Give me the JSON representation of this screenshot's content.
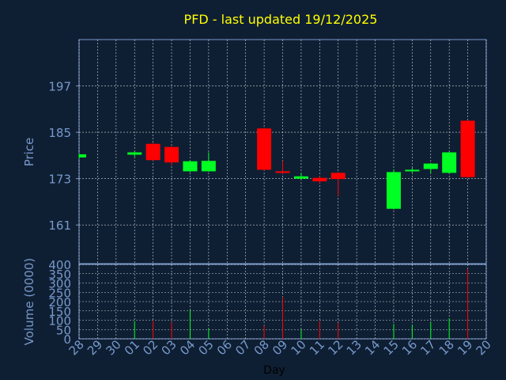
{
  "chart_data": [
    {
      "type": "candlestick",
      "title": "PFD - last updated 19/12/2025",
      "ylabel": "Price",
      "ylim": [
        151,
        209
      ],
      "yticks": [
        161,
        173,
        185,
        197
      ],
      "grid": true,
      "colors": {
        "up": "#00ff22",
        "down": "#ff0000",
        "title": "#ffff00",
        "axis_text": "#7799cc",
        "background": "#0f1f33",
        "grid": "#ffffff"
      },
      "x_days": [
        "28",
        "29",
        "30",
        "01",
        "02",
        "03",
        "04",
        "05",
        "06",
        "07",
        "08",
        "09",
        "10",
        "11",
        "12",
        "13",
        "14",
        "15",
        "16",
        "17",
        "18",
        "19",
        "20"
      ],
      "candles": [
        {
          "day": "28",
          "open": 178.5,
          "close": 179.3,
          "high": 179.5,
          "low": 178.3
        },
        {
          "day": "01",
          "open": 179.2,
          "close": 179.8,
          "high": 180.0,
          "low": 178.7
        },
        {
          "day": "02",
          "open": 182.0,
          "close": 177.8,
          "high": 182.3,
          "low": 177.6
        },
        {
          "day": "03",
          "open": 181.2,
          "close": 177.2,
          "high": 181.4,
          "low": 176.4
        },
        {
          "day": "04",
          "open": 174.9,
          "close": 177.5,
          "high": 177.7,
          "low": 174.7
        },
        {
          "day": "05",
          "open": 174.9,
          "close": 177.6,
          "high": 179.8,
          "low": 174.8
        },
        {
          "day": "08",
          "open": 186.0,
          "close": 175.3,
          "high": 186.2,
          "low": 175.1
        },
        {
          "day": "09",
          "open": 174.9,
          "close": 174.6,
          "high": 177.6,
          "low": 174.2
        },
        {
          "day": "10",
          "open": 173.0,
          "close": 173.6,
          "high": 174.5,
          "low": 172.8
        },
        {
          "day": "11",
          "open": 173.2,
          "close": 172.3,
          "high": 173.6,
          "low": 171.8
        },
        {
          "day": "12",
          "open": 174.5,
          "close": 172.9,
          "high": 174.7,
          "low": 168.5
        },
        {
          "day": "15",
          "open": 165.2,
          "close": 174.7,
          "high": 175.4,
          "low": 165.0
        },
        {
          "day": "16",
          "open": 174.9,
          "close": 175.3,
          "high": 175.8,
          "low": 174.6
        },
        {
          "day": "17",
          "open": 175.5,
          "close": 176.9,
          "high": 177.1,
          "low": 174.4
        },
        {
          "day": "18",
          "open": 174.5,
          "close": 179.8,
          "high": 180.0,
          "low": 174.3
        },
        {
          "day": "19",
          "open": 188.0,
          "close": 173.4,
          "high": 188.2,
          "low": 173.2
        }
      ]
    },
    {
      "type": "bar",
      "ylabel": "Volume (0000)",
      "xlabel": "Day",
      "ylim": [
        0,
        400
      ],
      "yticks": [
        0,
        50,
        100,
        150,
        200,
        250,
        300,
        350,
        400
      ],
      "bars": [
        {
          "day": "01",
          "value": 95,
          "direction": "up"
        },
        {
          "day": "02",
          "value": 95,
          "direction": "down"
        },
        {
          "day": "03",
          "value": 90,
          "direction": "down"
        },
        {
          "day": "04",
          "value": 155,
          "direction": "up"
        },
        {
          "day": "05",
          "value": 55,
          "direction": "up"
        },
        {
          "day": "08",
          "value": 70,
          "direction": "down"
        },
        {
          "day": "09",
          "value": 225,
          "direction": "down"
        },
        {
          "day": "10",
          "value": 50,
          "direction": "up"
        },
        {
          "day": "11",
          "value": 95,
          "direction": "down"
        },
        {
          "day": "12",
          "value": 85,
          "direction": "down"
        },
        {
          "day": "15",
          "value": 80,
          "direction": "up"
        },
        {
          "day": "16",
          "value": 75,
          "direction": "up"
        },
        {
          "day": "17",
          "value": 90,
          "direction": "up"
        },
        {
          "day": "18",
          "value": 110,
          "direction": "up"
        },
        {
          "day": "19",
          "value": 375,
          "direction": "down"
        }
      ]
    }
  ]
}
